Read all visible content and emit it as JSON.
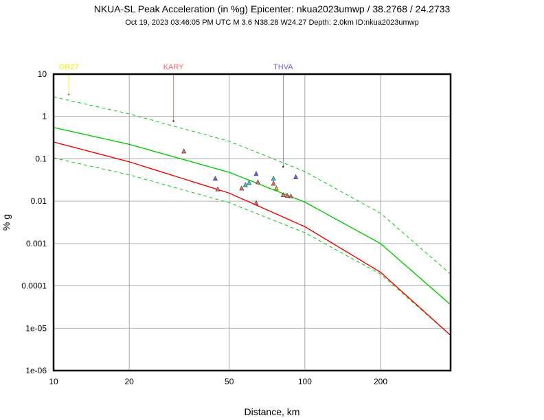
{
  "header": {
    "title": "NKUA-SL Peak Acceleration (in %g) Epicenter: nkua2023umwp / 38.2768 / 24.2733",
    "subtitle": "Oct 19, 2023 03:46:05 PM UTC   M 3.6   N38.28 W24.27   Depth: 2.0km   ID:nkua2023umwp"
  },
  "chart_data": {
    "type": "scatter",
    "title": "NKUA-SL Peak Acceleration (in %g) Epicenter: nkua2023umwp / 38.2768 / 24.2733",
    "xlabel": "Distance, km",
    "ylabel": "% g",
    "x_scale": "log",
    "y_scale": "log",
    "xlim": [
      10,
      380
    ],
    "ylim": [
      1e-06,
      10
    ],
    "grid": true,
    "x_ticks": [
      {
        "value": 10,
        "label": "10"
      },
      {
        "value": 20,
        "label": "20"
      },
      {
        "value": 50,
        "label": "50"
      },
      {
        "value": 100,
        "label": "100"
      },
      {
        "value": 200,
        "label": "200"
      }
    ],
    "y_ticks": [
      {
        "value": 10,
        "label": "10"
      },
      {
        "value": 1,
        "label": "1"
      },
      {
        "value": 0.1,
        "label": "0.1"
      },
      {
        "value": 0.01,
        "label": "0.01"
      },
      {
        "value": 0.001,
        "label": "0.001"
      },
      {
        "value": 0.0001,
        "label": "0.0001"
      },
      {
        "value": 1e-05,
        "label": "1e-05"
      },
      {
        "value": 1e-06,
        "label": "1e-06"
      }
    ],
    "curves": [
      {
        "color": "#00cc00",
        "dashed": false,
        "points": [
          [
            10,
            0.55
          ],
          [
            20,
            0.22
          ],
          [
            50,
            0.048
          ],
          [
            100,
            0.0095
          ],
          [
            200,
            0.001
          ],
          [
            380,
            3.6e-05
          ]
        ]
      },
      {
        "color": "#00cc00",
        "dashed": true,
        "points": [
          [
            10,
            2.9
          ],
          [
            20,
            1.15
          ],
          [
            50,
            0.26
          ],
          [
            100,
            0.05
          ],
          [
            200,
            0.0052
          ],
          [
            380,
            0.00019
          ]
        ]
      },
      {
        "color": "#00cc00",
        "dashed": true,
        "points": [
          [
            10,
            0.105
          ],
          [
            20,
            0.042
          ],
          [
            50,
            0.0092
          ],
          [
            100,
            0.0018
          ],
          [
            200,
            0.00019
          ],
          [
            380,
            6.8e-06
          ]
        ]
      },
      {
        "color": "#ee0000",
        "dashed": false,
        "points": [
          [
            10,
            0.25
          ],
          [
            20,
            0.085
          ],
          [
            50,
            0.0155
          ],
          [
            100,
            0.0025
          ],
          [
            200,
            0.00021
          ],
          [
            380,
            6.8e-06
          ]
        ]
      }
    ],
    "station_points": [
      {
        "x": 33,
        "y": 0.15,
        "color": "#ee6666"
      },
      {
        "x": 44,
        "y": 0.034,
        "color": "#6666ee"
      },
      {
        "x": 45,
        "y": 0.019,
        "color": "#ee6666"
      },
      {
        "x": 56,
        "y": 0.02,
        "color": "#ee6666"
      },
      {
        "x": 58,
        "y": 0.024,
        "color": "#33cccc"
      },
      {
        "x": 60,
        "y": 0.027,
        "color": "#33cccc"
      },
      {
        "x": 64,
        "y": 0.044,
        "color": "#6666ee"
      },
      {
        "x": 65,
        "y": 0.028,
        "color": "#ee6666"
      },
      {
        "x": 64,
        "y": 0.009,
        "color": "#ee6666"
      },
      {
        "x": 75,
        "y": 0.034,
        "color": "#33cccc"
      },
      {
        "x": 75,
        "y": 0.026,
        "color": "#ee6666"
      },
      {
        "x": 77,
        "y": 0.02,
        "color": "#cccc00"
      },
      {
        "x": 82,
        "y": 0.014,
        "color": "#ee6666"
      },
      {
        "x": 85,
        "y": 0.0135,
        "color": "#ee6666"
      },
      {
        "x": 88,
        "y": 0.013,
        "color": "#ee6666"
      },
      {
        "x": 92,
        "y": 0.037,
        "color": "#6666ee"
      }
    ],
    "labeled_stations": [
      {
        "name": "GR27",
        "x": 11.5,
        "y": 3.3,
        "color": "#eeee00"
      },
      {
        "name": "KARY",
        "x": 30,
        "y": 0.78,
        "color": "#ee6666"
      },
      {
        "name": "THVA",
        "x": 82,
        "y": 0.065,
        "color": "#6666cc"
      }
    ]
  }
}
